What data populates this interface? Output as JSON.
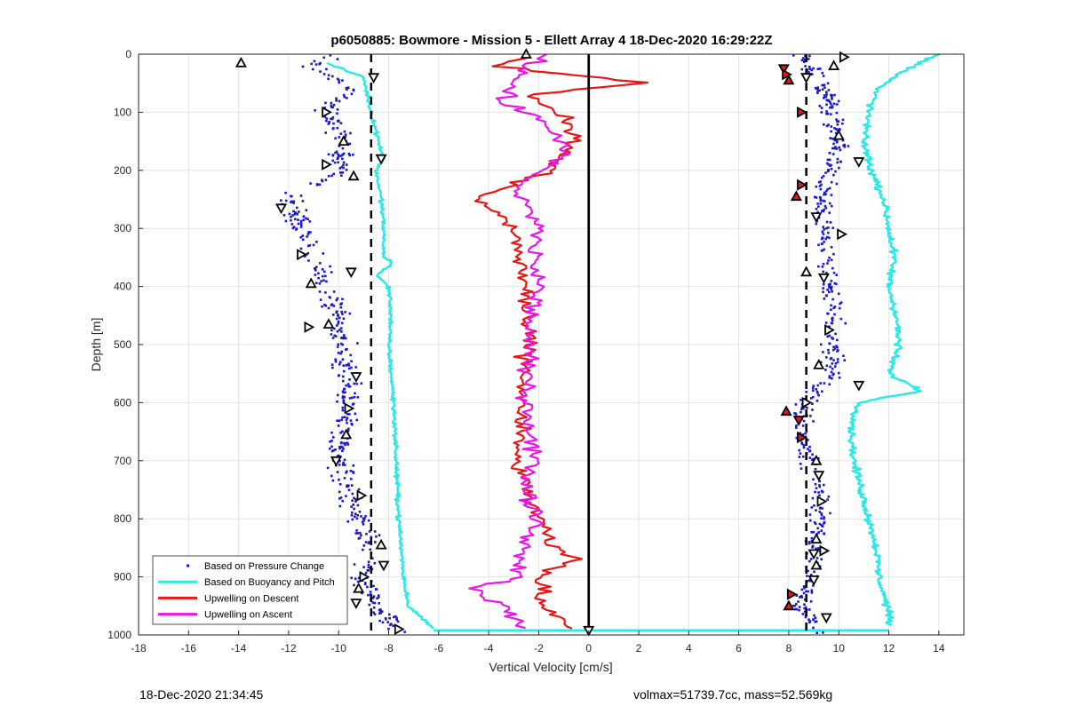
{
  "chart_data": {
    "type": "scatter",
    "title": "p6050885: Bowmore - Mission 5 - Ellett Array 4 18-Dec-2020 16:29:22Z",
    "xlabel": "Vertical Velocity [cm/s]",
    "ylabel": "Depth [m]",
    "xlim": [
      -18,
      15
    ],
    "ylim": [
      0,
      1000
    ],
    "y_reversed": true,
    "grid": true,
    "xticks": [
      "-18",
      "-16",
      "-14",
      "-12",
      "-10",
      "-8",
      "-6",
      "-4",
      "-2",
      "0",
      "2",
      "4",
      "6",
      "8",
      "10",
      "12",
      "14"
    ],
    "yticks": [
      "0",
      "100",
      "200",
      "300",
      "400",
      "500",
      "600",
      "700",
      "800",
      "900",
      "1000"
    ],
    "legend_position": "bottom-left",
    "reference_lines": [
      {
        "x": -8.7,
        "style": "dashed",
        "color": "#000000"
      },
      {
        "x": 8.7,
        "style": "dashed",
        "color": "#000000"
      },
      {
        "x": 0,
        "style": "solid",
        "color": "#000000"
      }
    ],
    "series": [
      {
        "name": "Based on Pressure Change",
        "kind": "dots",
        "color": "#1a1acc",
        "descent": {
          "depth": [
            0,
            20,
            60,
            100,
            150,
            200,
            250,
            300,
            350,
            400,
            450,
            500,
            550,
            600,
            650,
            700,
            750,
            800,
            850,
            900,
            950,
            1000
          ],
          "velocity": [
            -10.0,
            -11.0,
            -9.5,
            -10.5,
            -9.8,
            -10.0,
            -12.0,
            -11.5,
            -11.0,
            -10.5,
            -10.0,
            -9.8,
            -9.6,
            -9.7,
            -9.8,
            -10.0,
            -9.6,
            -9.2,
            -8.7,
            -9.0,
            -8.5,
            -7.6
          ]
        },
        "ascent": {
          "depth": [
            0,
            50,
            100,
            150,
            200,
            250,
            300,
            350,
            400,
            450,
            500,
            550,
            600,
            650,
            700,
            750,
            800,
            850,
            900,
            950,
            1000
          ],
          "velocity": [
            8.5,
            9.3,
            9.7,
            10.0,
            9.7,
            9.2,
            9.5,
            9.4,
            9.6,
            9.8,
            9.6,
            9.8,
            8.6,
            8.5,
            8.8,
            9.2,
            9.2,
            9.0,
            9.0,
            8.4,
            9.4
          ]
        }
      },
      {
        "name": "Based on Buoyancy and Pitch",
        "kind": "line",
        "color": "#2ee8e8",
        "descent": {
          "depth": [
            15,
            40,
            100,
            150,
            180,
            200,
            250,
            300,
            350,
            360,
            380,
            400,
            450,
            500,
            600,
            700,
            800,
            900,
            950,
            990
          ],
          "velocity": [
            -10.5,
            -9.0,
            -8.7,
            -8.4,
            -8.2,
            -8.5,
            -8.3,
            -8.2,
            -8.2,
            -7.8,
            -8.5,
            -8.0,
            -7.9,
            -8.0,
            -7.8,
            -7.7,
            -7.6,
            -7.4,
            -7.2,
            -6.2
          ]
        },
        "ascent": {
          "depth": [
            0,
            20,
            60,
            100,
            150,
            200,
            250,
            300,
            350,
            400,
            450,
            500,
            550,
            580,
            600,
            650,
            700,
            750,
            800,
            850,
            900,
            960,
            985
          ],
          "velocity": [
            14.0,
            13.0,
            11.5,
            11.2,
            11.0,
            11.3,
            11.8,
            12.0,
            12.2,
            12.0,
            12.3,
            12.4,
            12.0,
            13.3,
            10.8,
            10.5,
            10.6,
            10.9,
            11.2,
            11.5,
            11.6,
            12.0,
            12.0
          ]
        }
      },
      {
        "name": "Upwelling on Descent",
        "kind": "line",
        "color": "#e51717",
        "depth": [
          5,
          20,
          50,
          70,
          100,
          130,
          160,
          200,
          230,
          250,
          280,
          300,
          350,
          400,
          450,
          500,
          550,
          600,
          650,
          700,
          750,
          800,
          850,
          870,
          900,
          950,
          990
        ],
        "velocity": [
          -2.0,
          -4.0,
          2.5,
          -2.5,
          -1.2,
          -0.5,
          -0.8,
          -1.5,
          -3.5,
          -4.5,
          -3.5,
          -3.0,
          -2.8,
          -2.5,
          -2.6,
          -2.4,
          -2.6,
          -2.7,
          -2.8,
          -2.9,
          -2.5,
          -2.0,
          -1.5,
          -0.5,
          -2.0,
          -1.8,
          -0.5
        ]
      },
      {
        "name": "Upwelling on Ascent",
        "kind": "line",
        "color": "#e817e8",
        "depth": [
          0,
          20,
          50,
          80,
          100,
          130,
          160,
          180,
          200,
          230,
          260,
          300,
          350,
          400,
          450,
          500,
          550,
          600,
          650,
          700,
          750,
          800,
          850,
          900,
          920,
          950,
          990
        ],
        "velocity": [
          -1.5,
          -2.5,
          -3.0,
          -3.5,
          -2.5,
          -1.5,
          -0.8,
          -1.2,
          -2.0,
          -3.0,
          -2.5,
          -2.0,
          -2.2,
          -2.0,
          -2.3,
          -2.4,
          -2.5,
          -2.4,
          -2.3,
          -2.2,
          -2.5,
          -2.0,
          -2.6,
          -2.8,
          -4.5,
          -3.5,
          -2.5
        ]
      },
      {
        "name": "",
        "kind": "triangles",
        "color": "#000000",
        "points": [
          {
            "v": -13.9,
            "d": 15
          },
          {
            "v": -8.6,
            "d": 40
          },
          {
            "v": -10.5,
            "d": 100
          },
          {
            "v": -9.8,
            "d": 150
          },
          {
            "v": -8.3,
            "d": 180
          },
          {
            "v": -10.5,
            "d": 190
          },
          {
            "v": -9.4,
            "d": 210
          },
          {
            "v": -12.3,
            "d": 265
          },
          {
            "v": -11.5,
            "d": 345
          },
          {
            "v": -11.1,
            "d": 395
          },
          {
            "v": -9.5,
            "d": 375
          },
          {
            "v": -11.2,
            "d": 470
          },
          {
            "v": -10.4,
            "d": 465
          },
          {
            "v": -9.3,
            "d": 555
          },
          {
            "v": -9.6,
            "d": 610
          },
          {
            "v": -9.7,
            "d": 655
          },
          {
            "v": -10.1,
            "d": 700
          },
          {
            "v": -9.1,
            "d": 760
          },
          {
            "v": -8.3,
            "d": 845
          },
          {
            "v": -8.2,
            "d": 880
          },
          {
            "v": -9.0,
            "d": 900
          },
          {
            "v": -9.2,
            "d": 920
          },
          {
            "v": -9.3,
            "d": 945
          },
          {
            "v": -7.6,
            "d": 990
          },
          {
            "v": -2.5,
            "d": 0
          },
          {
            "v": 0.0,
            "d": 992
          },
          {
            "v": 10.2,
            "d": 5
          },
          {
            "v": 9.8,
            "d": 20
          },
          {
            "v": 7.8,
            "d": 25
          },
          {
            "v": 7.9,
            "d": 35
          },
          {
            "v": 8.0,
            "d": 45
          },
          {
            "v": 8.7,
            "d": 40
          },
          {
            "v": 8.5,
            "d": 100
          },
          {
            "v": 10.0,
            "d": 140
          },
          {
            "v": 10.8,
            "d": 185
          },
          {
            "v": 8.5,
            "d": 225
          },
          {
            "v": 8.3,
            "d": 245
          },
          {
            "v": 9.1,
            "d": 280
          },
          {
            "v": 10.1,
            "d": 310
          },
          {
            "v": 8.7,
            "d": 375
          },
          {
            "v": 9.4,
            "d": 385
          },
          {
            "v": 9.6,
            "d": 475
          },
          {
            "v": 9.2,
            "d": 535
          },
          {
            "v": 10.8,
            "d": 570
          },
          {
            "v": 8.7,
            "d": 600
          },
          {
            "v": 7.9,
            "d": 615
          },
          {
            "v": 8.4,
            "d": 630
          },
          {
            "v": 8.5,
            "d": 660
          },
          {
            "v": 9.1,
            "d": 700
          },
          {
            "v": 9.2,
            "d": 725
          },
          {
            "v": 9.3,
            "d": 770
          },
          {
            "v": 9.1,
            "d": 835
          },
          {
            "v": 9.0,
            "d": 860
          },
          {
            "v": 9.4,
            "d": 855
          },
          {
            "v": 9.1,
            "d": 880
          },
          {
            "v": 9.0,
            "d": 905
          },
          {
            "v": 8.1,
            "d": 930
          },
          {
            "v": 8.0,
            "d": 950
          },
          {
            "v": 9.5,
            "d": 970
          }
        ]
      }
    ]
  },
  "legend": [
    {
      "label": "Based on Pressure Change",
      "color": "#1a1acc",
      "marker": "dot"
    },
    {
      "label": "Based on Buoyancy and Pitch",
      "color": "#2ee8e8",
      "marker": "line"
    },
    {
      "label": "Upwelling on Descent",
      "color": "#e51717",
      "marker": "line"
    },
    {
      "label": "Upwelling on Ascent",
      "color": "#e817e8",
      "marker": "line"
    }
  ],
  "footer": {
    "timestamp": "18-Dec-2020 21:34:45",
    "stats": "volmax=51739.7cc, mass=52.569kg"
  }
}
